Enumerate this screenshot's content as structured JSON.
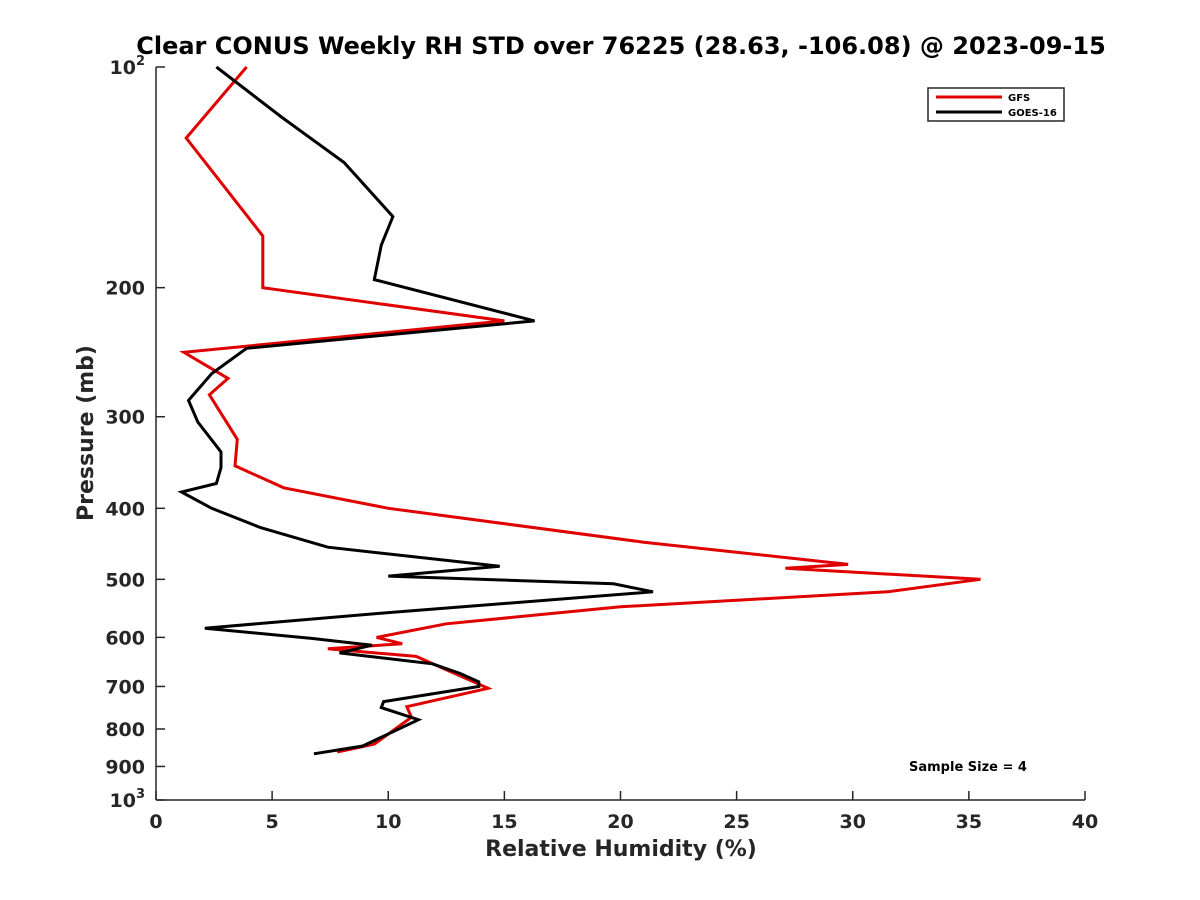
{
  "chart_data": {
    "type": "line",
    "title": "Clear CONUS Weekly RH STD over 76225 (28.63, -106.08) @ 2023-09-15",
    "xlabel": "Relative Humidity (%)",
    "ylabel": "Pressure (mb)",
    "xlim": [
      0,
      40
    ],
    "ylim": [
      100,
      1000
    ],
    "yscale": "log",
    "y_reversed": true,
    "grid": false,
    "legend_position": "top-right",
    "x_ticks": [
      0,
      5,
      10,
      15,
      20,
      25,
      30,
      35,
      40
    ],
    "y_ticks": [
      {
        "value": 100,
        "label": "10",
        "sup": "2"
      },
      {
        "value": 200,
        "label": "200",
        "sup": ""
      },
      {
        "value": 300,
        "label": "300",
        "sup": ""
      },
      {
        "value": 400,
        "label": "400",
        "sup": ""
      },
      {
        "value": 500,
        "label": "500",
        "sup": ""
      },
      {
        "value": 600,
        "label": "600",
        "sup": ""
      },
      {
        "value": 700,
        "label": "700",
        "sup": ""
      },
      {
        "value": 800,
        "label": "800",
        "sup": ""
      },
      {
        "value": 900,
        "label": "900",
        "sup": ""
      },
      {
        "value": 1000,
        "label": "10",
        "sup": "3"
      }
    ],
    "annotation": "Sample Size = 4",
    "series": [
      {
        "name": "GFS",
        "color": "#e00000",
        "points": [
          [
            3.9,
            100
          ],
          [
            1.3,
            125
          ],
          [
            4.6,
            170
          ],
          [
            4.6,
            200
          ],
          [
            15.0,
            222
          ],
          [
            1.2,
            245
          ],
          [
            3.1,
            266
          ],
          [
            2.3,
            280
          ],
          [
            3.5,
            322
          ],
          [
            3.4,
            350
          ],
          [
            5.5,
            375
          ],
          [
            10.0,
            400
          ],
          [
            21.0,
            445
          ],
          [
            29.8,
            477
          ],
          [
            27.1,
            483
          ],
          [
            35.5,
            500
          ],
          [
            31.5,
            520
          ],
          [
            20.0,
            545
          ],
          [
            12.5,
            575
          ],
          [
            9.5,
            600
          ],
          [
            10.6,
            612
          ],
          [
            7.4,
            622
          ],
          [
            11.2,
            637
          ],
          [
            14.3,
            704
          ],
          [
            10.8,
            746
          ],
          [
            11.0,
            771
          ],
          [
            9.4,
            839
          ],
          [
            7.8,
            860
          ]
        ]
      },
      {
        "name": "GOES-16",
        "color": "#000000",
        "points": [
          [
            2.6,
            100
          ],
          [
            5.4,
            117
          ],
          [
            8.1,
            135
          ],
          [
            10.2,
            160
          ],
          [
            9.7,
            175
          ],
          [
            9.4,
            195
          ],
          [
            16.3,
            222
          ],
          [
            3.9,
            242
          ],
          [
            2.4,
            262
          ],
          [
            1.4,
            285
          ],
          [
            1.8,
            305
          ],
          [
            2.8,
            335
          ],
          [
            2.8,
            352
          ],
          [
            2.6,
            370
          ],
          [
            1.1,
            380
          ],
          [
            2.4,
            400
          ],
          [
            4.5,
            425
          ],
          [
            7.4,
            452
          ],
          [
            14.8,
            480
          ],
          [
            10.0,
            495
          ],
          [
            19.7,
            507
          ],
          [
            21.4,
            520
          ],
          [
            10.0,
            555
          ],
          [
            2.1,
            583
          ],
          [
            6.7,
            602
          ],
          [
            9.3,
            615
          ],
          [
            7.9,
            630
          ],
          [
            11.9,
            652
          ],
          [
            13.1,
            672
          ],
          [
            13.9,
            690
          ],
          [
            13.9,
            700
          ],
          [
            9.8,
            734
          ],
          [
            9.7,
            748
          ],
          [
            11.3,
            777
          ],
          [
            8.9,
            844
          ],
          [
            6.8,
            865
          ]
        ]
      }
    ]
  }
}
